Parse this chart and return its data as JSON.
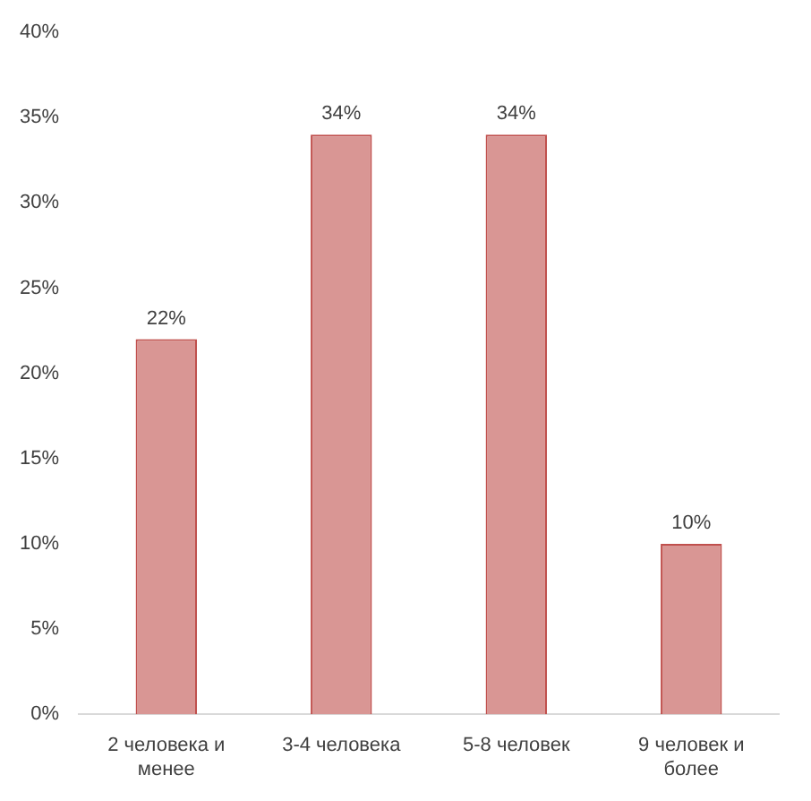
{
  "chart_data": {
    "type": "bar",
    "categories": [
      "2 человека и менее",
      "3-4 человека",
      "5-8 человек",
      "9 человек и более"
    ],
    "values": [
      22,
      34,
      34,
      10
    ],
    "color": "#d99694",
    "value_labels": [
      "22%",
      "34%",
      "34%",
      "10%"
    ],
    "ylim": [
      0,
      40
    ],
    "yticks": [
      {
        "value": 0,
        "label": "0%"
      },
      {
        "value": 5,
        "label": "5%"
      },
      {
        "value": 10,
        "label": "10%"
      },
      {
        "value": 15,
        "label": "15%"
      },
      {
        "value": 20,
        "label": "20%"
      },
      {
        "value": 25,
        "label": "25%"
      },
      {
        "value": 30,
        "label": "30%"
      },
      {
        "value": 35,
        "label": "35%"
      },
      {
        "value": 40,
        "label": "40%"
      }
    ],
    "grid": false,
    "legend": false
  }
}
